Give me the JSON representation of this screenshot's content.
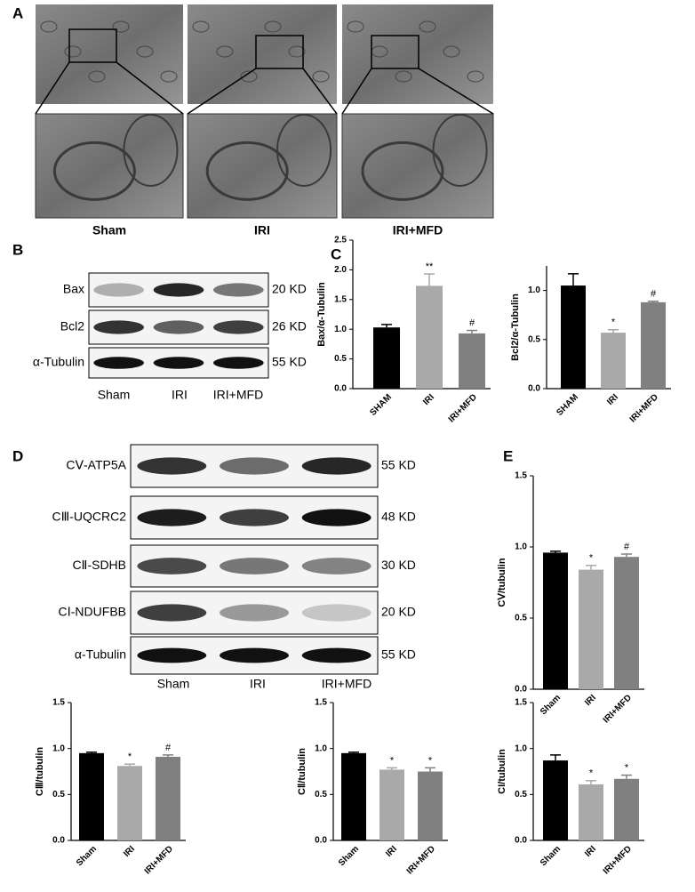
{
  "figure": {
    "panel_labels": [
      "A",
      "B",
      "C",
      "D",
      "E"
    ],
    "micrograph_labels": [
      "Sham",
      "IRI",
      "IRI+MFD"
    ],
    "blot_b": {
      "rows": [
        {
          "label": "Bax",
          "size": "20 KD"
        },
        {
          "label": "Bcl2",
          "size": "26 KD"
        },
        {
          "label": "α-Tubulin",
          "size": "55 KD"
        }
      ],
      "columns": [
        "Sham",
        "IRI",
        "IRI+MFD"
      ]
    },
    "blot_d": {
      "rows": [
        {
          "label": "CⅤ-ATP5A",
          "size": "55 KD"
        },
        {
          "label": "CⅢ-UQCRC2",
          "size": "48 KD"
        },
        {
          "label": "CⅡ-SDHB",
          "size": "30 KD"
        },
        {
          "label": "CⅠ-NDUFBB",
          "size": "20 KD"
        },
        {
          "label": "α-Tubulin",
          "size": "55 KD"
        }
      ],
      "columns": [
        "Sham",
        "IRI",
        "IRI+MFD"
      ]
    }
  },
  "chart_data": [
    {
      "type": "bar",
      "y_label": "Bax/α-Tubulin",
      "categories": [
        "SHAM",
        "IRI",
        "IRI+MFD"
      ],
      "values": [
        1.03,
        1.73,
        0.93
      ],
      "errors": [
        0.05,
        0.2,
        0.05
      ],
      "annotations": [
        null,
        "**",
        "#"
      ],
      "colors": [
        "#000000",
        "#a9a9a9",
        "#808080"
      ],
      "ylim": [
        0,
        2.5
      ],
      "yticks": [
        {
          "value": 0,
          "label": "0.0"
        },
        {
          "value": 0.5,
          "label": "0.5"
        },
        {
          "value": 1,
          "label": "1.0"
        },
        {
          "value": 1.5,
          "label": "1.5"
        },
        {
          "value": 2,
          "label": "2.0"
        },
        {
          "value": 2.5,
          "label": "2.5"
        }
      ]
    },
    {
      "type": "bar",
      "y_label": "Bcl2/α-Tubulin",
      "categories": [
        "SHAM",
        "IRI",
        "IRI+MFD"
      ],
      "values": [
        1.05,
        0.57,
        0.88
      ],
      "errors": [
        0.12,
        0.03,
        0.01
      ],
      "annotations": [
        null,
        "*",
        "#"
      ],
      "colors": [
        "#000000",
        "#a9a9a9",
        "#808080"
      ],
      "ylim": [
        0,
        1.25
      ],
      "yticks": [
        {
          "value": 0,
          "label": "0.0"
        },
        {
          "value": 0.5,
          "label": "0.5"
        },
        {
          "value": 1,
          "label": "1.0"
        }
      ]
    },
    {
      "type": "bar",
      "y_label": "CⅤ/tubulin",
      "categories": [
        "Sham",
        "IRI",
        "IRI+MFD"
      ],
      "values": [
        0.96,
        0.84,
        0.93
      ],
      "errors": [
        0.01,
        0.03,
        0.02
      ],
      "annotations": [
        null,
        "*",
        "#"
      ],
      "colors": [
        "#000000",
        "#a9a9a9",
        "#808080"
      ],
      "ylim": [
        0,
        1.5
      ],
      "yticks": [
        {
          "value": 0,
          "label": "0.0"
        },
        {
          "value": 0.5,
          "label": "0.5"
        },
        {
          "value": 1,
          "label": "1.0"
        },
        {
          "value": 1.5,
          "label": "1.5"
        }
      ]
    },
    {
      "type": "bar",
      "y_label": "CⅢ/tubulin",
      "categories": [
        "Sham",
        "IRI",
        "IRI+MFD"
      ],
      "values": [
        0.95,
        0.81,
        0.91
      ],
      "errors": [
        0.01,
        0.02,
        0.02
      ],
      "annotations": [
        null,
        "*",
        "#"
      ],
      "colors": [
        "#000000",
        "#a9a9a9",
        "#808080"
      ],
      "ylim": [
        0,
        1.5
      ],
      "yticks": [
        {
          "value": 0,
          "label": "0.0"
        },
        {
          "value": 0.5,
          "label": "0.5"
        },
        {
          "value": 1,
          "label": "1.0"
        },
        {
          "value": 1.5,
          "label": "1.5"
        }
      ]
    },
    {
      "type": "bar",
      "y_label": "CⅡ/tubulin",
      "categories": [
        "Sham",
        "IRI",
        "IRI+MFD"
      ],
      "values": [
        0.95,
        0.77,
        0.75
      ],
      "errors": [
        0.01,
        0.02,
        0.04
      ],
      "annotations": [
        null,
        "*",
        "*"
      ],
      "colors": [
        "#000000",
        "#a9a9a9",
        "#808080"
      ],
      "ylim": [
        0,
        1.5
      ],
      "yticks": [
        {
          "value": 0,
          "label": "0.0"
        },
        {
          "value": 0.5,
          "label": "0.5"
        },
        {
          "value": 1,
          "label": "1.0"
        },
        {
          "value": 1.5,
          "label": "1.5"
        }
      ]
    },
    {
      "type": "bar",
      "y_label": "CI/tubulin",
      "categories": [
        "Sham",
        "IRI",
        "IRI+MFD"
      ],
      "values": [
        0.87,
        0.61,
        0.67
      ],
      "errors": [
        0.06,
        0.04,
        0.04
      ],
      "annotations": [
        null,
        "*",
        "*"
      ],
      "colors": [
        "#000000",
        "#a9a9a9",
        "#808080"
      ],
      "ylim": [
        0,
        1.5
      ],
      "yticks": [
        {
          "value": 0,
          "label": "0.0"
        },
        {
          "value": 0.5,
          "label": "0.5"
        },
        {
          "value": 1,
          "label": "1.0"
        },
        {
          "value": 1.5,
          "label": "1.5"
        }
      ]
    }
  ]
}
